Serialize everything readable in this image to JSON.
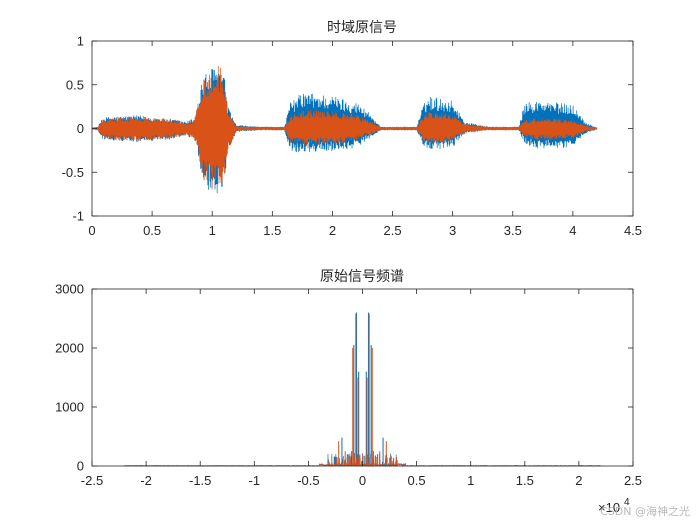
{
  "chart_data": [
    {
      "type": "line",
      "title": "时域原信号",
      "xlim": [
        0,
        4.5
      ],
      "ylim": [
        -1,
        1
      ],
      "x_ticks": [
        0,
        0.5,
        1,
        1.5,
        2,
        2.5,
        3,
        3.5,
        4,
        4.5
      ],
      "x_tick_labels": [
        "0",
        "0.5",
        "1",
        "1.5",
        "2",
        "2.5",
        "3",
        "3.5",
        "4",
        "4.5"
      ],
      "y_ticks": [
        -1,
        -0.5,
        0,
        0.5,
        1
      ],
      "y_tick_labels": [
        "-1",
        "-0.5",
        "0",
        "0.5",
        "1"
      ],
      "grid": false,
      "series": [
        {
          "color": "#0072BD",
          "envelope": {
            "x": [
              0.0,
              0.05,
              0.08,
              0.15,
              0.4,
              0.7,
              0.78,
              0.85,
              0.88,
              0.92,
              0.98,
              1.05,
              1.1,
              1.13,
              1.2,
              1.4,
              1.6,
              1.65,
              1.75,
              2.0,
              2.2,
              2.3,
              2.4,
              2.7,
              2.75,
              2.8,
              3.0,
              3.1,
              3.3,
              3.55,
              3.6,
              3.7,
              4.0,
              4.1,
              4.2
            ],
            "top": [
              0.01,
              0.02,
              0.12,
              0.14,
              0.15,
              0.1,
              0.08,
              0.12,
              0.3,
              0.6,
              0.68,
              0.74,
              0.62,
              0.25,
              0.04,
              0.02,
              0.02,
              0.3,
              0.42,
              0.38,
              0.3,
              0.2,
              0.02,
              0.02,
              0.25,
              0.38,
              0.32,
              0.08,
              0.02,
              0.02,
              0.3,
              0.32,
              0.28,
              0.08,
              0.01
            ],
            "bottom": [
              -0.01,
              -0.02,
              -0.12,
              -0.14,
              -0.16,
              -0.12,
              -0.09,
              -0.12,
              -0.3,
              -0.62,
              -0.72,
              -0.8,
              -0.7,
              -0.3,
              -0.04,
              -0.02,
              -0.02,
              -0.26,
              -0.28,
              -0.26,
              -0.22,
              -0.12,
              -0.02,
              -0.02,
              -0.2,
              -0.26,
              -0.22,
              -0.06,
              -0.02,
              -0.02,
              -0.18,
              -0.24,
              -0.22,
              -0.06,
              -0.01
            ]
          }
        },
        {
          "color": "#D95319",
          "envelope": {
            "x": [
              0.0,
              0.05,
              0.08,
              0.15,
              0.4,
              0.7,
              0.78,
              0.85,
              0.88,
              0.92,
              0.98,
              1.05,
              1.1,
              1.13,
              1.2,
              1.4,
              1.6,
              1.65,
              1.75,
              2.0,
              2.2,
              2.3,
              2.4,
              2.7,
              2.75,
              2.8,
              3.0,
              3.1,
              3.3,
              3.55,
              3.6,
              3.7,
              4.0,
              4.1,
              4.2
            ],
            "top": [
              0.01,
              0.02,
              0.1,
              0.12,
              0.14,
              0.1,
              0.07,
              0.1,
              0.28,
              0.58,
              0.66,
              0.76,
              0.6,
              0.22,
              0.03,
              0.02,
              0.02,
              0.15,
              0.22,
              0.2,
              0.16,
              0.1,
              0.02,
              0.02,
              0.14,
              0.2,
              0.17,
              0.05,
              0.02,
              0.02,
              0.1,
              0.12,
              0.1,
              0.04,
              0.01
            ],
            "bottom": [
              -0.01,
              -0.02,
              -0.1,
              -0.13,
              -0.15,
              -0.11,
              -0.08,
              -0.11,
              -0.28,
              -0.6,
              -0.7,
              -0.78,
              -0.66,
              -0.28,
              -0.03,
              -0.02,
              -0.02,
              -0.16,
              -0.2,
              -0.18,
              -0.14,
              -0.08,
              -0.02,
              -0.02,
              -0.14,
              -0.18,
              -0.15,
              -0.05,
              -0.02,
              -0.02,
              -0.1,
              -0.13,
              -0.12,
              -0.04,
              -0.01
            ]
          }
        }
      ]
    },
    {
      "type": "line",
      "title": "原始信号频谱",
      "xlim": [
        -25000,
        25000
      ],
      "ylim": [
        0,
        3000
      ],
      "x_ticks": [
        -25000,
        -20000,
        -15000,
        -10000,
        -5000,
        0,
        5000,
        10000,
        15000,
        20000,
        25000
      ],
      "x_tick_labels": [
        "-2.5",
        "-2",
        "-1.5",
        "-1",
        "-0.5",
        "0",
        "0.5",
        "1",
        "1.5",
        "2",
        "2.5"
      ],
      "x_exponent_base": "×10",
      "x_exponent_power": "4",
      "y_ticks": [
        0,
        1000,
        2000,
        3000
      ],
      "y_tick_labels": [
        "0",
        "1000",
        "2000",
        "3000"
      ],
      "grid": false,
      "series": [
        {
          "color": "#0072BD",
          "peaks": {
            "x": [
              -2600,
              -1900,
              -1400,
              -1000,
              -800,
              -550,
              -350,
              350,
              550,
              800,
              1000,
              1400,
              1900,
              2600
            ],
            "y": [
              150,
              480,
              200,
              250,
              2050,
              2600,
              1600,
              1600,
              2600,
              2050,
              250,
              200,
              480,
              150
            ]
          }
        },
        {
          "color": "#D95319",
          "peaks": {
            "x": [
              -3200,
              -2200,
              -1600,
              -1200,
              -900,
              -620,
              -420,
              420,
              620,
              900,
              1200,
              1600,
              2200,
              3200
            ],
            "y": [
              100,
              420,
              250,
              180,
              2000,
              2580,
              1500,
              1500,
              2580,
              2000,
              180,
              250,
              420,
              100
            ]
          }
        }
      ]
    }
  ],
  "watermark": "CSDN @海神之光"
}
